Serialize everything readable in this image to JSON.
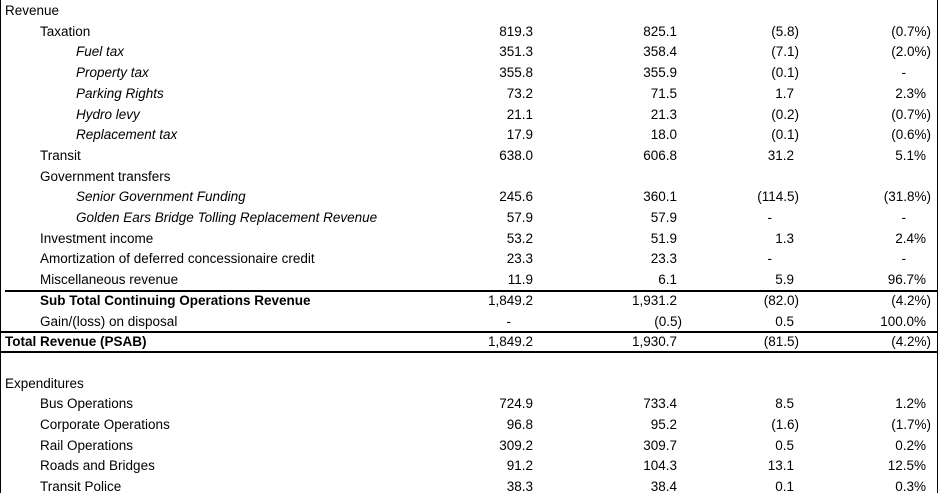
{
  "rows": [
    {
      "label": "Revenue"
    },
    {
      "label": "Taxation",
      "values": [
        "819.3",
        "825.1",
        "(5.8)",
        "(0.7%)"
      ]
    },
    {
      "label": "Fuel tax",
      "values": [
        "351.3",
        "358.4",
        "(7.1)",
        "(2.0%)"
      ]
    },
    {
      "label": "Property tax",
      "values": [
        "355.8",
        "355.9",
        "(0.1)",
        "-"
      ]
    },
    {
      "label": "Parking Rights",
      "values": [
        "73.2",
        "71.5",
        "1.7",
        "2.3%"
      ]
    },
    {
      "label": "Hydro levy",
      "values": [
        "21.1",
        "21.3",
        "(0.2)",
        "(0.7%)"
      ]
    },
    {
      "label": "Replacement tax",
      "values": [
        "17.9",
        "18.0",
        "(0.1)",
        "(0.6%)"
      ]
    },
    {
      "label": "Transit",
      "values": [
        "638.0",
        "606.8",
        "31.2",
        "5.1%"
      ]
    },
    {
      "label": "Government transfers"
    },
    {
      "label": "Senior Government Funding",
      "values": [
        "245.6",
        "360.1",
        "(114.5)",
        "(31.8%)"
      ]
    },
    {
      "label": "Golden Ears Bridge Tolling Replacement Revenue",
      "values": [
        "57.9",
        "57.9",
        "-",
        "-"
      ]
    },
    {
      "label": "Investment income",
      "values": [
        "53.2",
        "51.9",
        "1.3",
        "2.4%"
      ]
    },
    {
      "label": "Amortization of deferred concessionaire credit",
      "values": [
        "23.3",
        "23.3",
        "-",
        "-"
      ]
    },
    {
      "label": "Miscellaneous revenue",
      "values": [
        "11.9",
        "6.1",
        "5.9",
        "96.7%"
      ]
    },
    {
      "label": "Sub Total Continuing Operations Revenue",
      "values": [
        "1,849.2",
        "1,931.2",
        "(82.0)",
        "(4.2%)"
      ]
    },
    {
      "label": "Gain/(loss) on disposal",
      "values": [
        "-",
        "(0.5)",
        "0.5",
        "100.0%"
      ]
    },
    {
      "label": "Total Revenue (PSAB)",
      "values": [
        "1,849.2",
        "1,930.7",
        "(81.5)",
        "(4.2%)"
      ]
    },
    {
      "label": "Expenditures"
    },
    {
      "label": "Bus Operations",
      "values": [
        "724.9",
        "733.4",
        "8.5",
        "1.2%"
      ]
    },
    {
      "label": "Corporate Operations",
      "values": [
        "96.8",
        "95.2",
        "(1.6)",
        "(1.7%)"
      ]
    },
    {
      "label": "Rail Operations",
      "values": [
        "309.2",
        "309.7",
        "0.5",
        "0.2%"
      ]
    },
    {
      "label": "Roads and Bridges",
      "values": [
        "91.2",
        "104.3",
        "13.1",
        "12.5%"
      ]
    },
    {
      "label": "Transit Police",
      "values": [
        "38.3",
        "38.4",
        "0.1",
        "0.3%"
      ]
    }
  ]
}
